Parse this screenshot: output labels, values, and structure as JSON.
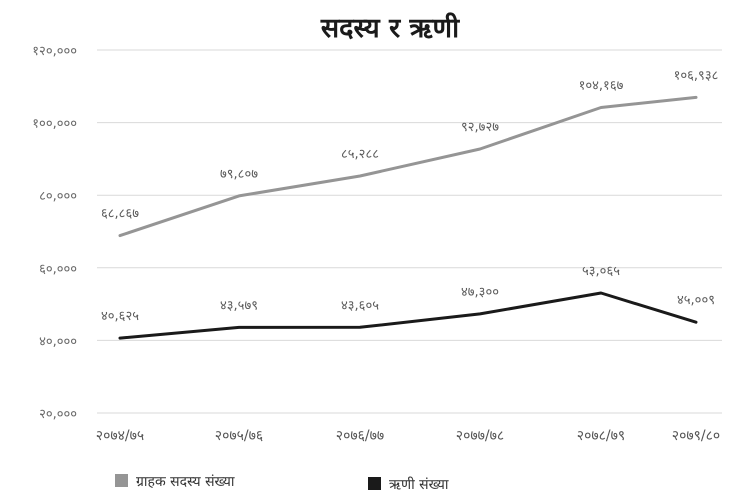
{
  "chart_data": {
    "type": "line",
    "title": "सदस्य र ऋणी",
    "categories": [
      "२०७४/७५",
      "२०७५/७६",
      "२०७६/७७",
      "२०७७/७८",
      "२०७८/७९",
      "२०७९/८०"
    ],
    "y_ticks": [
      "२०,०००",
      "४०,०००",
      "६०,०००",
      "८०,०००",
      "१००,०००",
      "१२०,०००"
    ],
    "y_tick_values": [
      20000,
      40000,
      60000,
      80000,
      100000,
      120000
    ],
    "ylim": [
      20000,
      120000
    ],
    "grid": true,
    "legend_position": "bottom",
    "series": [
      {
        "name": "ग्राहक सदस्य संख्या",
        "color": "#959595",
        "values": [
          68867,
          79807,
          85288,
          92727,
          104167,
          106938
        ],
        "labels": [
          "६८,८६७",
          "७९,८०७",
          "८५,२८८",
          "९२,७२७",
          "१०४,१६७",
          "१०६,९३८"
        ]
      },
      {
        "name": "ऋणी संख्या",
        "color": "#1a1a1a",
        "values": [
          40625,
          43579,
          43605,
          47300,
          53065,
          45009
        ],
        "labels": [
          "४०,६२५",
          "४३,५७९",
          "४३,६०५",
          "४७,३००",
          "५३,०६५",
          "४५,००९"
        ]
      }
    ]
  }
}
